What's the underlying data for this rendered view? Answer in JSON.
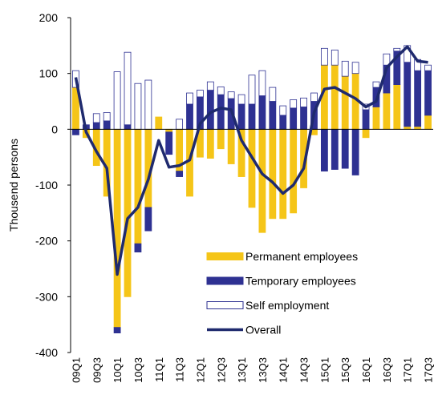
{
  "chart_data": {
    "type": "bar",
    "y_label": "Thousend persons",
    "categories": [
      "09Q1",
      null,
      "09Q3",
      null,
      "10Q1",
      null,
      "10Q3",
      null,
      "11Q1",
      null,
      "11Q3",
      null,
      "12Q1",
      null,
      "12Q3",
      null,
      "13Q1",
      null,
      "13Q3",
      null,
      "14Q1",
      null,
      "14Q3",
      null,
      "15Q1",
      null,
      "15Q3",
      null,
      "16Q1",
      null,
      "16Q3",
      null,
      "17Q1",
      null,
      "17Q3"
    ],
    "series": [
      {
        "name": "Permanent employees",
        "type": "bar",
        "color": "#f5c518",
        "edgecolor": "#f5c518",
        "values": [
          75,
          -15,
          -65,
          -120,
          -355,
          -300,
          -205,
          -140,
          22,
          -5,
          -75,
          -120,
          -50,
          -52,
          -35,
          -62,
          -85,
          -140,
          -185,
          -160,
          -160,
          -150,
          -105,
          -10,
          115,
          115,
          95,
          100,
          -15,
          40,
          65,
          80,
          5,
          5,
          25
        ]
      },
      {
        "name": "Temporary employees",
        "type": "bar",
        "color": "#2e3192",
        "edgecolor": "#2e3192",
        "values": [
          -10,
          8,
          12,
          15,
          -10,
          8,
          -15,
          -42,
          0,
          -40,
          -10,
          45,
          58,
          70,
          62,
          55,
          45,
          45,
          60,
          50,
          25,
          38,
          40,
          50,
          -75,
          -72,
          -70,
          -82,
          35,
          35,
          50,
          60,
          115,
          100,
          80
        ]
      },
      {
        "name": "Self employment",
        "type": "bar",
        "color": "#ffffff",
        "edgecolor": "#2e3192",
        "values": [
          30,
          0,
          16,
          15,
          103,
          130,
          82,
          88,
          0,
          0,
          18,
          20,
          12,
          15,
          14,
          12,
          17,
          52,
          45,
          25,
          17,
          15,
          16,
          15,
          30,
          27,
          27,
          20,
          10,
          10,
          20,
          5,
          30,
          20,
          10
        ]
      },
      {
        "name": "Overall",
        "type": "line",
        "color": "#1f2a6e",
        "values": [
          93,
          -5,
          -40,
          -70,
          -260,
          -160,
          -140,
          -90,
          -20,
          -68,
          -65,
          -55,
          10,
          30,
          38,
          35,
          -20,
          -50,
          -80,
          -95,
          -115,
          -100,
          -70,
          30,
          72,
          75,
          65,
          55,
          40,
          50,
          110,
          130,
          148,
          122,
          120
        ]
      }
    ],
    "ylim": [
      -400,
      200
    ],
    "yticks": [
      -400,
      -300,
      -200,
      -100,
      0,
      100,
      200
    ]
  }
}
